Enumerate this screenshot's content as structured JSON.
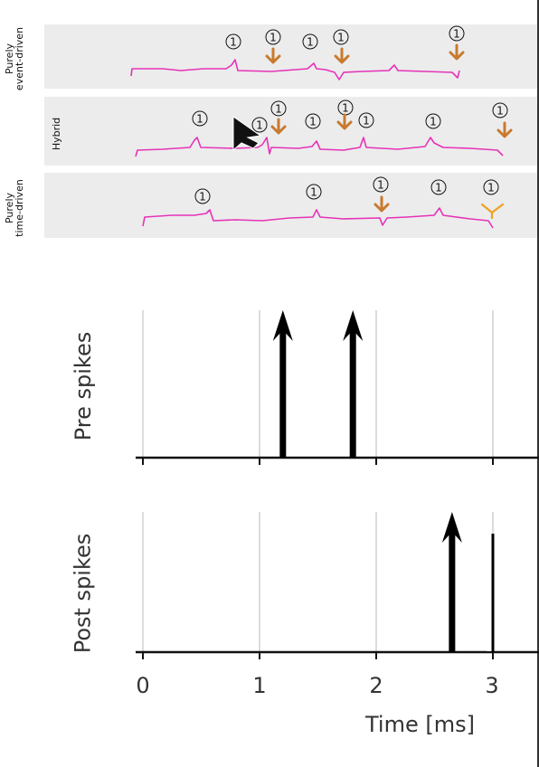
{
  "rows": [
    {
      "label": "Purely\nevent-driven",
      "event_mark": "1"
    },
    {
      "label": "Hybrid",
      "event_mark": "1"
    },
    {
      "label": "Purely\ntime-driven",
      "event_mark": "1"
    }
  ],
  "colors": {
    "trace": "#e633b8",
    "update_arrow": "#c87a2e",
    "update_arrow_bright": "#f0a020",
    "panel": "#ececec"
  },
  "chart_data": {
    "type": "spike-raster",
    "xlabel": "Time [ms]",
    "xticks": [
      "0",
      "1",
      "2",
      "3"
    ],
    "xlim": [
      0,
      3.4
    ],
    "plots": [
      {
        "ylabel": "Pre spikes",
        "spike_times": [
          1.2,
          1.8
        ]
      },
      {
        "ylabel": "Post spikes",
        "spike_times": [
          2.65
        ]
      }
    ]
  }
}
